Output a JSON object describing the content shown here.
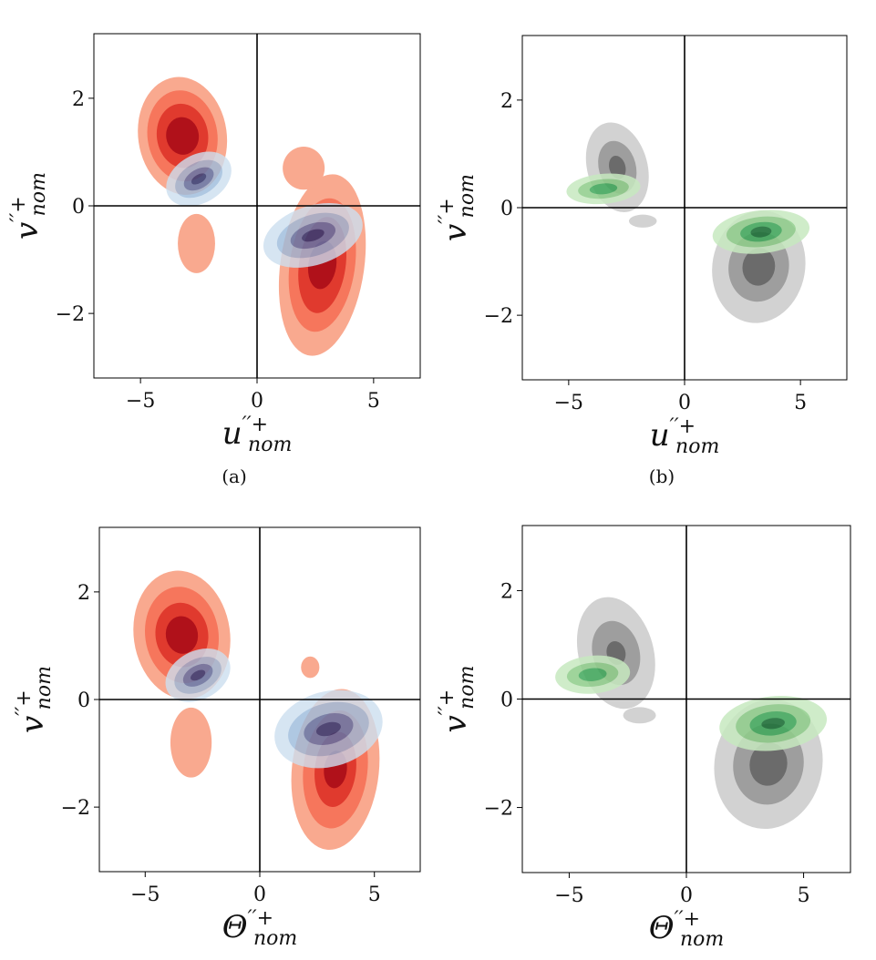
{
  "chart_data": [
    {
      "type": "contour",
      "caption": "(a)",
      "xlabel": "u''+nom",
      "xlabel_main": "u",
      "xlabel_sup": "′′+",
      "xlabel_sub": "nom",
      "ylabel": "v''+nom",
      "ylabel_main": "v",
      "ylabel_sup": "′′+",
      "ylabel_sub": "nom",
      "xlim": [
        -7,
        7
      ],
      "ylim": [
        -3.2,
        3.2
      ],
      "xticks": [
        -5,
        0,
        5
      ],
      "yticks": [
        -2,
        0,
        2
      ],
      "xtick_labels": [
        "−5",
        "0",
        "5"
      ],
      "ytick_labels": [
        "−2",
        "0",
        "2"
      ],
      "series": [
        {
          "colormap": "reds",
          "colors": [
            "#f9a98f",
            "#f6765c",
            "#e03a2e",
            "#b0111a"
          ],
          "opacity": 1,
          "blobs": [
            {
              "cx": -3.2,
              "cy": 1.3,
              "levels": [
                [
                  1.9,
                  1.1,
                  -8
                ],
                [
                  1.5,
                  0.85,
                  -8
                ],
                [
                  1.1,
                  0.6,
                  -8
                ],
                [
                  0.7,
                  0.35,
                  -8
                ]
              ]
            },
            {
              "cx": 2.8,
              "cy": -1.1,
              "levels": [
                [
                  1.8,
                  1.7,
                  8
                ],
                [
                  1.4,
                  1.25,
                  8
                ],
                [
                  1.0,
                  0.9,
                  8
                ],
                [
                  0.6,
                  0.45,
                  8
                ]
              ]
            },
            {
              "cx": -2.6,
              "cy": -0.7,
              "levels": [
                [
                  0.8,
                  0.55,
                  0
                ]
              ]
            },
            {
              "cx": 2.0,
              "cy": 0.7,
              "levels": [
                [
                  0.9,
                  0.4,
                  0
                ]
              ]
            }
          ]
        },
        {
          "colormap": "blues",
          "colors": [
            "#cddff0",
            "#9cbbdc",
            "#5e78ae",
            "#283c7a"
          ],
          "opacity": 0.8,
          "blobs": [
            {
              "cx": -2.5,
              "cy": 0.5,
              "levels": [
                [
                  1.5,
                  0.45,
                  -30
                ],
                [
                  1.1,
                  0.3,
                  -30
                ],
                [
                  0.7,
                  0.18,
                  -30
                ],
                [
                  0.35,
                  0.08,
                  -30
                ]
              ]
            },
            {
              "cx": 2.4,
              "cy": -0.55,
              "levels": [
                [
                  2.2,
                  0.55,
                  -18
                ],
                [
                  1.6,
                  0.38,
                  -18
                ],
                [
                  1.0,
                  0.22,
                  -18
                ],
                [
                  0.5,
                  0.1,
                  -18
                ]
              ]
            }
          ]
        }
      ]
    },
    {
      "type": "contour",
      "caption": "(b)",
      "xlabel": "u''+nom",
      "xlabel_main": "u",
      "xlabel_sup": "′′+",
      "xlabel_sub": "nom",
      "ylabel": "v''+nom",
      "ylabel_main": "v",
      "ylabel_sup": "′′+",
      "ylabel_sub": "nom",
      "xlim": [
        -7,
        7
      ],
      "ylim": [
        -3.2,
        3.2
      ],
      "xticks": [
        -5,
        0,
        5
      ],
      "yticks": [
        -2,
        0,
        2
      ],
      "xtick_labels": [
        "−5",
        "0",
        "5"
      ],
      "ytick_labels": [
        "−2",
        "0",
        "2"
      ],
      "series": [
        {
          "colormap": "greys",
          "colors": [
            "#d2d2d2",
            "#9e9e9e",
            "#6b6b6b"
          ],
          "opacity": 1,
          "blobs": [
            {
              "cx": -2.9,
              "cy": 0.75,
              "levels": [
                [
                  1.3,
                  0.85,
                  -15
                ],
                [
                  0.8,
                  0.5,
                  -15
                ],
                [
                  0.35,
                  0.22,
                  -15
                ]
              ]
            },
            {
              "cx": 3.2,
              "cy": -1.1,
              "levels": [
                [
                  2.0,
                  1.05,
                  10
                ],
                [
                  1.3,
                  0.65,
                  10
                ],
                [
                  0.7,
                  0.35,
                  10
                ]
              ]
            },
            {
              "cx": -1.8,
              "cy": -0.25,
              "levels": [
                [
                  0.6,
                  0.12,
                  0
                ]
              ]
            }
          ]
        },
        {
          "colormap": "greens",
          "colors": [
            "#c7e9c0",
            "#8fcd8a",
            "#41a95c",
            "#1a6f35"
          ],
          "opacity": 0.85,
          "blobs": [
            {
              "cx": -3.5,
              "cy": 0.35,
              "levels": [
                [
                  1.6,
                  0.28,
                  -5
                ],
                [
                  1.1,
                  0.18,
                  -5
                ],
                [
                  0.6,
                  0.1,
                  -5
                ]
              ]
            },
            {
              "cx": 3.3,
              "cy": -0.45,
              "levels": [
                [
                  2.1,
                  0.4,
                  -6
                ],
                [
                  1.5,
                  0.28,
                  -6
                ],
                [
                  0.9,
                  0.18,
                  -6
                ],
                [
                  0.45,
                  0.1,
                  -6
                ]
              ]
            }
          ]
        }
      ]
    },
    {
      "type": "contour",
      "caption": "",
      "xlabel": "Θ''+nom",
      "xlabel_main": "Θ",
      "xlabel_sup": "′′+",
      "xlabel_sub": "nom",
      "ylabel": "v''+nom",
      "ylabel_main": "v",
      "ylabel_sup": "′′+",
      "ylabel_sub": "nom",
      "xlim": [
        -7,
        7
      ],
      "ylim": [
        -3.2,
        3.2
      ],
      "xticks": [
        -5,
        0,
        5
      ],
      "yticks": [
        -2,
        0,
        2
      ],
      "xtick_labels": [
        "−5",
        "0",
        "5"
      ],
      "ytick_labels": [
        "−2",
        "0",
        "2"
      ],
      "series": [
        {
          "colormap": "reds",
          "colors": [
            "#f9a98f",
            "#f6765c",
            "#e03a2e",
            "#b0111a"
          ],
          "opacity": 1,
          "blobs": [
            {
              "cx": -3.4,
              "cy": 1.2,
              "levels": [
                [
                  2.1,
                  1.2,
                  -8
                ],
                [
                  1.6,
                  0.9,
                  -8
                ],
                [
                  1.15,
                  0.6,
                  -8
                ],
                [
                  0.7,
                  0.35,
                  -8
                ]
              ]
            },
            {
              "cx": 3.3,
              "cy": -1.3,
              "levels": [
                [
                  1.9,
                  1.5,
                  6
                ],
                [
                  1.4,
                  1.1,
                  6
                ],
                [
                  0.9,
                  0.7,
                  6
                ],
                [
                  0.5,
                  0.35,
                  6
                ]
              ]
            },
            {
              "cx": -3.0,
              "cy": -0.8,
              "levels": [
                [
                  0.9,
                  0.65,
                  0
                ]
              ]
            },
            {
              "cx": 2.2,
              "cy": 0.6,
              "levels": [
                [
                  0.4,
                  0.2,
                  0
                ]
              ]
            }
          ]
        },
        {
          "colormap": "blues",
          "colors": [
            "#cddff0",
            "#9cbbdc",
            "#5e78ae",
            "#283c7a"
          ],
          "opacity": 0.8,
          "blobs": [
            {
              "cx": -2.7,
              "cy": 0.45,
              "levels": [
                [
                  1.5,
                  0.45,
                  -28
                ],
                [
                  1.1,
                  0.3,
                  -28
                ],
                [
                  0.7,
                  0.18,
                  -28
                ],
                [
                  0.35,
                  0.08,
                  -28
                ]
              ]
            },
            {
              "cx": 3.0,
              "cy": -0.55,
              "levels": [
                [
                  2.4,
                  0.7,
                  -15
                ],
                [
                  1.8,
                  0.48,
                  -15
                ],
                [
                  1.1,
                  0.28,
                  -15
                ],
                [
                  0.55,
                  0.12,
                  -15
                ]
              ]
            }
          ]
        }
      ]
    },
    {
      "type": "contour",
      "caption": "",
      "xlabel": "Θ''+nom",
      "xlabel_main": "Θ",
      "xlabel_sup": "′′+",
      "xlabel_sub": "nom",
      "ylabel": "v''+nom",
      "ylabel_main": "v",
      "ylabel_sup": "′′+",
      "ylabel_sub": "nom",
      "xlim": [
        -7,
        7
      ],
      "ylim": [
        -3.2,
        3.2
      ],
      "xticks": [
        -5,
        0,
        5
      ],
      "yticks": [
        -2,
        0,
        2
      ],
      "xtick_labels": [
        "−5",
        "0",
        "5"
      ],
      "ytick_labels": [
        "−2",
        "0",
        "2"
      ],
      "series": [
        {
          "colormap": "greys",
          "colors": [
            "#d2d2d2",
            "#9e9e9e",
            "#6b6b6b"
          ],
          "opacity": 1,
          "blobs": [
            {
              "cx": -3.0,
              "cy": 0.85,
              "levels": [
                [
                  1.6,
                  1.05,
                  -15
                ],
                [
                  1.0,
                  0.6,
                  -15
                ],
                [
                  0.4,
                  0.22,
                  -15
                ]
              ]
            },
            {
              "cx": 3.5,
              "cy": -1.2,
              "levels": [
                [
                  2.3,
                  1.2,
                  10
                ],
                [
                  1.5,
                  0.75,
                  10
                ],
                [
                  0.8,
                  0.4,
                  10
                ]
              ]
            },
            {
              "cx": -2.0,
              "cy": -0.3,
              "levels": [
                [
                  0.7,
                  0.15,
                  0
                ]
              ]
            }
          ]
        },
        {
          "colormap": "greens",
          "colors": [
            "#c7e9c0",
            "#8fcd8a",
            "#41a95c",
            "#1a6f35"
          ],
          "opacity": 0.85,
          "blobs": [
            {
              "cx": -4.0,
              "cy": 0.45,
              "levels": [
                [
                  1.6,
                  0.35,
                  -5
                ],
                [
                  1.1,
                  0.22,
                  -5
                ],
                [
                  0.6,
                  0.12,
                  -5
                ]
              ]
            },
            {
              "cx": 3.7,
              "cy": -0.45,
              "levels": [
                [
                  2.3,
                  0.5,
                  -6
                ],
                [
                  1.6,
                  0.35,
                  -6
                ],
                [
                  1.0,
                  0.22,
                  -6
                ],
                [
                  0.5,
                  0.1,
                  -6
                ]
              ]
            }
          ]
        }
      ]
    }
  ]
}
